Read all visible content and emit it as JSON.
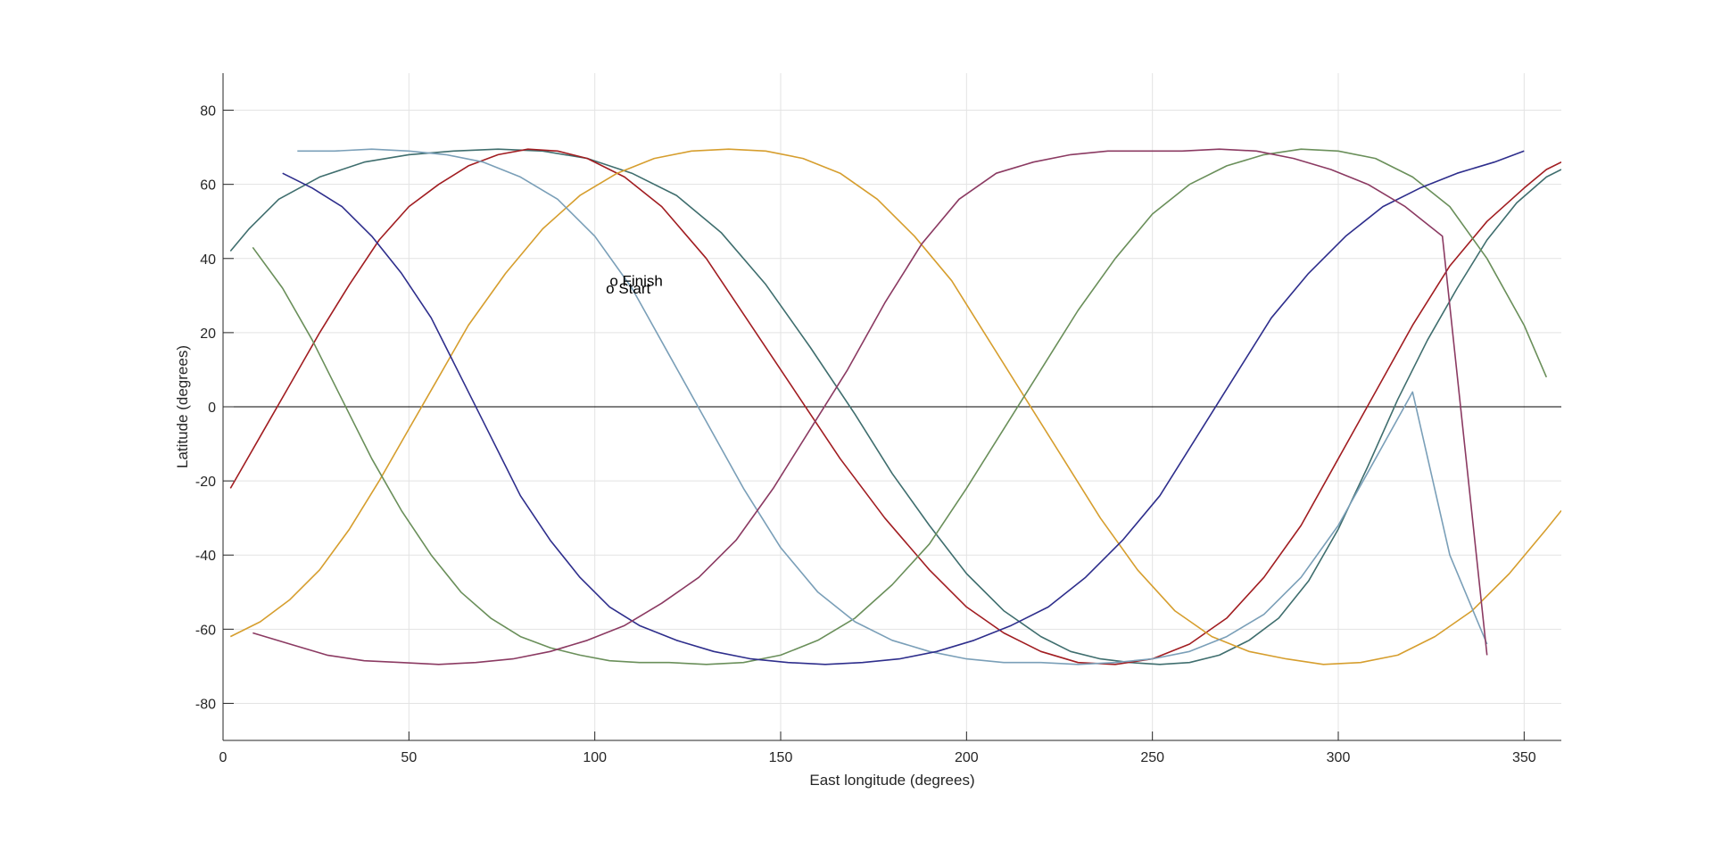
{
  "chart_data": {
    "type": "line",
    "title": "",
    "xlabel": "East longitude (degrees)",
    "ylabel": "Latitude (degrees)",
    "xlim": [
      0,
      360
    ],
    "ylim": [
      -90,
      90
    ],
    "xticks": [
      0,
      50,
      100,
      150,
      200,
      250,
      300,
      350
    ],
    "yticks": [
      -80,
      -60,
      -40,
      -20,
      0,
      20,
      40,
      60,
      80
    ],
    "grid": true,
    "zero_line": true,
    "inclination_deg": 69.5,
    "annotations": [
      {
        "text": "o Finish",
        "x": 104,
        "y": 34
      },
      {
        "text": "o Start",
        "x": 103,
        "y": 32
      }
    ],
    "palette": [
      "#2e2e8c",
      "#a11d21",
      "#d69e2e",
      "#6a8f5a",
      "#3f6e6e",
      "#7a9fb8",
      "#8b3a62"
    ],
    "series": [
      {
        "color": "#3f6e6e",
        "x": [
          2,
          7,
          15,
          26,
          38,
          50,
          62,
          74,
          86,
          98,
          110,
          122,
          134,
          146,
          158,
          170,
          180,
          190,
          200,
          210,
          220,
          228,
          236,
          244,
          252,
          260,
          268,
          276,
          284,
          292,
          300,
          308,
          316,
          324,
          332,
          340,
          348,
          356,
          360
        ],
        "y": [
          42,
          48,
          56,
          62,
          66,
          68,
          69,
          69.5,
          69,
          67,
          63,
          57,
          47,
          33,
          16,
          -2,
          -18,
          -32,
          -45,
          -55,
          -62,
          -66,
          -68,
          -69,
          -69.5,
          -69,
          -67,
          -63,
          -57,
          -47,
          -33,
          -16,
          2,
          18,
          32,
          45,
          55,
          62,
          64
        ]
      },
      {
        "color": "#a11d21",
        "x": [
          2,
          10,
          18,
          26,
          34,
          42,
          50,
          58,
          66,
          74,
          82,
          90,
          98,
          108,
          118,
          130,
          142,
          154,
          166,
          178,
          190,
          200,
          210,
          220,
          230,
          240,
          250,
          260,
          270,
          280,
          290,
          300,
          310,
          320,
          330,
          340,
          350,
          356,
          360
        ],
        "y": [
          -22,
          -8,
          6,
          20,
          33,
          45,
          54,
          60,
          65,
          68,
          69.5,
          69,
          67,
          62,
          54,
          40,
          22,
          4,
          -14,
          -30,
          -44,
          -54,
          -61,
          -66,
          -69,
          -69.5,
          -68,
          -64,
          -57,
          -46,
          -32,
          -14,
          4,
          22,
          38,
          50,
          59,
          64,
          66
        ]
      },
      {
        "color": "#d69e2e",
        "x": [
          2,
          10,
          18,
          26,
          34,
          42,
          50,
          58,
          66,
          76,
          86,
          96,
          106,
          116,
          126,
          136,
          146,
          156,
          166,
          176,
          186,
          196,
          206,
          216,
          226,
          236,
          246,
          256,
          266,
          276,
          286,
          296,
          306,
          316,
          326,
          336,
          346,
          356,
          360
        ],
        "y": [
          -62,
          -58,
          -52,
          -44,
          -33,
          -20,
          -6,
          8,
          22,
          36,
          48,
          57,
          63,
          67,
          69,
          69.5,
          69,
          67,
          63,
          56,
          46,
          34,
          18,
          2,
          -14,
          -30,
          -44,
          -55,
          -62,
          -66,
          -68,
          -69.5,
          -69,
          -67,
          -62,
          -55,
          -45,
          -33,
          -28
        ]
      },
      {
        "color": "#6a8f5a",
        "x": [
          8,
          16,
          24,
          32,
          40,
          48,
          56,
          64,
          72,
          80,
          88,
          96,
          104,
          112,
          120,
          130,
          140,
          150,
          160,
          170,
          180,
          190,
          200,
          210,
          220,
          230,
          240,
          250,
          260,
          270,
          280,
          290,
          300,
          310,
          320,
          330,
          340,
          350,
          356
        ],
        "y": [
          43,
          32,
          18,
          2,
          -14,
          -28,
          -40,
          -50,
          -57,
          -62,
          -65,
          -67,
          -68.5,
          -69,
          -69,
          -69.5,
          -69,
          -67,
          -63,
          -57,
          -48,
          -37,
          -22,
          -6,
          10,
          26,
          40,
          52,
          60,
          65,
          68,
          69.5,
          69,
          67,
          62,
          54,
          40,
          22,
          8
        ]
      },
      {
        "color": "#7a9fb8",
        "x": [
          20,
          30,
          40,
          50,
          60,
          70,
          80,
          90,
          100,
          110,
          120,
          130,
          140,
          150,
          160,
          170,
          180,
          190,
          200,
          210,
          220,
          230,
          240,
          250,
          260,
          270,
          280,
          290,
          300,
          310,
          320,
          330,
          340
        ],
        "y": [
          69,
          69,
          69.5,
          69,
          68,
          66,
          62,
          56,
          46,
          32,
          14,
          -4,
          -22,
          -38,
          -50,
          -58,
          -63,
          -66,
          -68,
          -69,
          -69,
          -69.5,
          -69,
          -68,
          -66,
          -62,
          -56,
          -46,
          -32,
          -14,
          4,
          -40,
          -64
        ]
      },
      {
        "color": "#2e2e8c",
        "x": [
          16,
          24,
          32,
          40,
          48,
          56,
          64,
          72,
          80,
          88,
          96,
          104,
          112,
          122,
          132,
          142,
          152,
          162,
          172,
          182,
          192,
          202,
          212,
          222,
          232,
          242,
          252,
          262,
          272,
          282,
          292,
          302,
          312,
          322,
          332,
          342,
          350
        ],
        "y": [
          63,
          59,
          54,
          46,
          36,
          24,
          8,
          -8,
          -24,
          -36,
          -46,
          -54,
          -59,
          -63,
          -66,
          -68,
          -69,
          -69.5,
          -69,
          -68,
          -66,
          -63,
          -59,
          -54,
          -46,
          -36,
          -24,
          -8,
          8,
          24,
          36,
          46,
          54,
          59,
          63,
          66,
          69
        ]
      },
      {
        "color": "#8b3a62",
        "x": [
          8,
          18,
          28,
          38,
          48,
          58,
          68,
          78,
          88,
          98,
          108,
          118,
          128,
          138,
          148,
          158,
          168,
          178,
          188,
          198,
          208,
          218,
          228,
          238,
          248,
          258,
          268,
          278,
          288,
          298,
          308,
          318,
          328,
          340
        ],
        "y": [
          -61,
          -64,
          -67,
          -68.5,
          -69,
          -69.5,
          -69,
          -68,
          -66,
          -63,
          -59,
          -53,
          -46,
          -36,
          -22,
          -6,
          10,
          28,
          44,
          56,
          63,
          66,
          68,
          69,
          69,
          69,
          69.5,
          69,
          67,
          64,
          60,
          54,
          46,
          -67
        ]
      }
    ]
  }
}
